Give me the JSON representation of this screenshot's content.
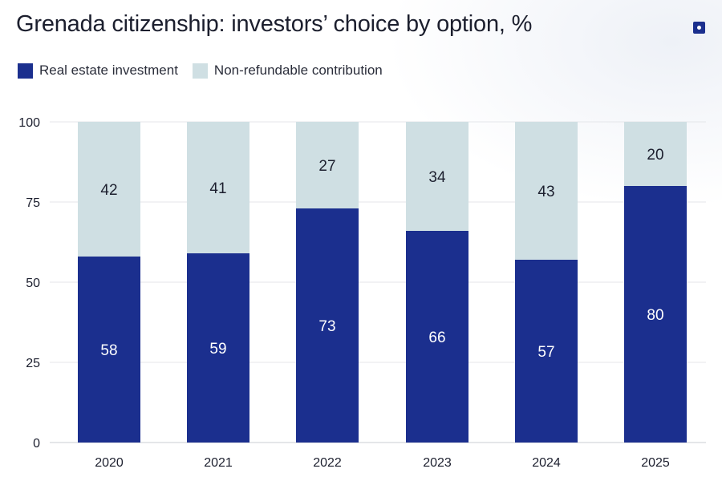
{
  "title": "Grenada citizenship: investors’ choice by option, %",
  "legend": [
    {
      "label": "Real estate investment",
      "color": "#1b2f8e"
    },
    {
      "label": "Non-refundable contribution",
      "color": "#cfdfe3"
    }
  ],
  "chart_data": {
    "type": "bar",
    "stacked": true,
    "categories": [
      "2020",
      "2021",
      "2022",
      "2023",
      "2024",
      "2025"
    ],
    "series": [
      {
        "name": "Real estate investment",
        "values": [
          58,
          59,
          73,
          66,
          57,
          80
        ],
        "color": "#1b2f8e",
        "label_color": "#ffffff"
      },
      {
        "name": "Non-refundable contribution",
        "values": [
          42,
          41,
          27,
          34,
          43,
          20
        ],
        "color": "#cfdfe3",
        "label_color": "#1c1f2e"
      }
    ],
    "ylim": [
      0,
      100
    ],
    "yticks": [
      0,
      25,
      50,
      75,
      100
    ],
    "grid": true,
    "legend_position": "top-left",
    "xlabel": "",
    "ylabel": ""
  }
}
